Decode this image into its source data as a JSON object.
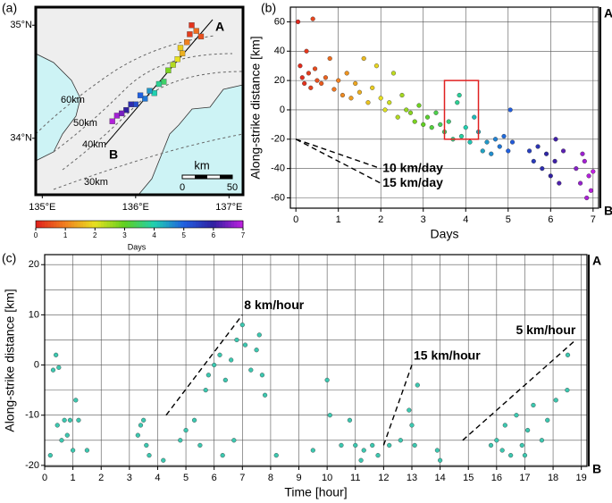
{
  "chart_data": [
    {
      "type": "map",
      "panel_label": "(a)",
      "xlim": [
        134.93,
        137.15
      ],
      "ylim": [
        33.5,
        35.16
      ],
      "xticks": [
        {
          "value": 135,
          "label": "135°E"
        },
        {
          "value": 136,
          "label": "136°E"
        },
        {
          "value": 137,
          "label": "137°E"
        }
      ],
      "yticks": [
        {
          "value": 34,
          "label": "34°N"
        },
        {
          "value": 35,
          "label": "35°N"
        }
      ],
      "contour_labels": [
        "60km",
        "50km",
        "40km",
        "30km"
      ],
      "profile_ends": [
        "A",
        "B"
      ],
      "scale_bar": {
        "title": "km",
        "labels": [
          "0",
          "50"
        ]
      },
      "points": {
        "lon": [
          136.6,
          136.7,
          136.55,
          136.5,
          136.45,
          136.35,
          136.3,
          136.2,
          136.1,
          136.0,
          135.9,
          135.8,
          135.85,
          136.05,
          136.25,
          136.65,
          136.4,
          135.95,
          136.58,
          136.48,
          136.15,
          135.75
        ],
        "lat": [
          35.0,
          34.9,
          34.85,
          34.75,
          34.7,
          34.6,
          34.5,
          34.4,
          34.35,
          34.3,
          34.25,
          34.2,
          34.22,
          34.38,
          34.48,
          34.95,
          34.65,
          34.3,
          34.92,
          34.8,
          34.42,
          34.15
        ],
        "days": [
          0.2,
          0.5,
          1,
          1.5,
          2,
          2.8,
          3.5,
          4,
          4.8,
          5.3,
          6,
          6.8,
          6.5,
          5,
          3.8,
          0.8,
          2.4,
          5.8,
          0.3,
          1.8,
          4.5,
          6.9
        ]
      },
      "colorbar": {
        "label": "Days",
        "lim": [
          0,
          7
        ],
        "ticks": [
          0,
          1,
          2,
          3,
          4,
          5,
          6,
          7
        ],
        "colors": [
          "#e0201c",
          "#f08020",
          "#e8e020",
          "#60d020",
          "#20d0b0",
          "#2060e0",
          "#3020a0",
          "#c020e0"
        ]
      }
    },
    {
      "type": "scatter",
      "panel_label": "(b)",
      "x_label": "Days",
      "y_label": "Along-strike distance [km]",
      "top_label": "A",
      "bottom_label": "B",
      "xlim": [
        -0.13,
        7.13
      ],
      "ylim": [
        -67,
        70
      ],
      "xticks": [
        0,
        1,
        2,
        3,
        4,
        5,
        6,
        7
      ],
      "yticks": [
        -60,
        -40,
        -20,
        0,
        20,
        40,
        60
      ],
      "grid": true,
      "point_color": "colormap",
      "x": [
        0.05,
        0.1,
        0.15,
        0.2,
        0.25,
        0.3,
        0.35,
        0.4,
        0.45,
        0.5,
        0.6,
        0.7,
        0.8,
        0.9,
        1.0,
        1.1,
        1.2,
        1.3,
        1.4,
        1.5,
        1.6,
        1.7,
        1.8,
        1.9,
        2.0,
        2.1,
        2.2,
        2.4,
        2.5,
        2.6,
        2.8,
        2.9,
        3.0,
        2.3,
        2.7,
        3.1,
        3.2,
        3.3,
        3.5,
        3.6,
        3.7,
        3.8,
        3.85,
        3.9,
        4.0,
        4.1,
        4.2,
        4.3,
        3.4,
        4.5,
        4.6,
        4.7,
        4.8,
        4.9,
        5.0,
        5.05,
        5.1,
        4.4,
        5.5,
        5.6,
        5.7,
        5.8,
        5.9,
        6.0,
        6.1,
        6.2,
        6.3,
        6.12,
        6.6,
        6.7,
        6.8,
        6.85,
        6.9,
        6.95,
        7.0,
        6.75
      ],
      "values": [
        60,
        30,
        22,
        18,
        40,
        25,
        15,
        62,
        28,
        20,
        18,
        22,
        35,
        14,
        20,
        10,
        25,
        8,
        18,
        12,
        35,
        5,
        15,
        30,
        8,
        0,
        5,
        -5,
        10,
        0,
        -8,
        3,
        -10,
        25,
        -2,
        -5,
        -12,
        -2,
        -15,
        -8,
        -20,
        5,
        10,
        -18,
        -12,
        -22,
        -5,
        -15,
        -10,
        -22,
        -30,
        -20,
        -25,
        -18,
        -28,
        0,
        -22,
        -28,
        -28,
        -35,
        -25,
        -40,
        -30,
        -45,
        -35,
        -50,
        -28,
        -20,
        -40,
        -50,
        -35,
        -60,
        -45,
        -55,
        -42,
        -30
      ],
      "annotations": [
        {
          "text": "10 km/day",
          "x": [
            0,
            2
          ],
          "y": [
            -20,
            -40
          ]
        },
        {
          "text": "15 km/day",
          "x": [
            0,
            2
          ],
          "y": [
            -20,
            -50
          ]
        }
      ],
      "highlight": {
        "x": [
          3.5,
          4.3
        ],
        "y": [
          -20,
          20
        ],
        "color": "#e02020"
      }
    },
    {
      "type": "scatter",
      "panel_label": "(c)",
      "x_label": "Time [hour]",
      "y_label": "Along-strike distance [km]",
      "top_label": "A",
      "bottom_label": "B",
      "xlim": [
        0,
        19.2
      ],
      "ylim": [
        -20.2,
        22
      ],
      "xticks": [
        0,
        1,
        2,
        3,
        4,
        5,
        6,
        7,
        8,
        9,
        10,
        11,
        12,
        13,
        14,
        15,
        16,
        17,
        18,
        19
      ],
      "yticks": [
        -20,
        -10,
        0,
        10,
        20
      ],
      "ygrid": [
        -15,
        -5,
        5,
        15
      ],
      "grid": true,
      "point_color": "#3cc8b0",
      "x": [
        0.3,
        0.4,
        0.45,
        0.5,
        0.6,
        0.7,
        0.8,
        0.9,
        1.0,
        1.1,
        1.2,
        1.5,
        0.2,
        3.3,
        3.5,
        3.6,
        3.7,
        3.4,
        4.2,
        4.8,
        5.0,
        5.3,
        5.5,
        5.7,
        5.8,
        6.0,
        6.2,
        6.4,
        6.6,
        6.8,
        7.0,
        7.1,
        7.3,
        7.5,
        7.6,
        7.7,
        7.8,
        6.3,
        6.7,
        8.2,
        9.5,
        10.0,
        10.1,
        10.5,
        10.8,
        11.0,
        11.3,
        11.6,
        11.8,
        11.2,
        12.2,
        12.6,
        12.9,
        13.0,
        13.2,
        13.1,
        13.9,
        14.0,
        15.8,
        16.0,
        16.3,
        16.5,
        16.7,
        16.9,
        17.1,
        17.3,
        17.6,
        17.8,
        18.1,
        18.5,
        18.52,
        16.2,
        17.0
      ],
      "values": [
        -1,
        2,
        -12,
        -0.5,
        -15,
        -11,
        -14,
        -11,
        -17,
        -7,
        -11,
        -17,
        -18,
        -14,
        -11,
        -16,
        -18,
        -12,
        -19,
        -15,
        -13,
        -11,
        -16,
        -5,
        -2,
        0,
        2,
        -3,
        1,
        5,
        8,
        4,
        -1,
        3,
        6,
        -2,
        -6,
        -18,
        -15,
        -18,
        -17,
        -3,
        -10,
        -16,
        -11,
        -16,
        -17,
        -16,
        -18,
        -19,
        -16,
        -15,
        -9,
        -12,
        -4,
        -16,
        -17,
        -19,
        -16,
        -15,
        -12,
        -18,
        -10,
        -16,
        -13,
        -8,
        -15,
        -11,
        -7,
        -5,
        2,
        -17,
        -18
      ],
      "annotations": [
        {
          "text": "8 km/hour",
          "x": [
            4.3,
            7
          ],
          "y": [
            -10,
            10
          ]
        },
        {
          "text": "15 km/hour",
          "x": [
            12,
            13
          ],
          "y": [
            -16,
            0
          ]
        },
        {
          "text": "5 km/hour",
          "x": [
            14.8,
            18.8
          ],
          "y": [
            -15,
            5
          ]
        }
      ]
    }
  ]
}
